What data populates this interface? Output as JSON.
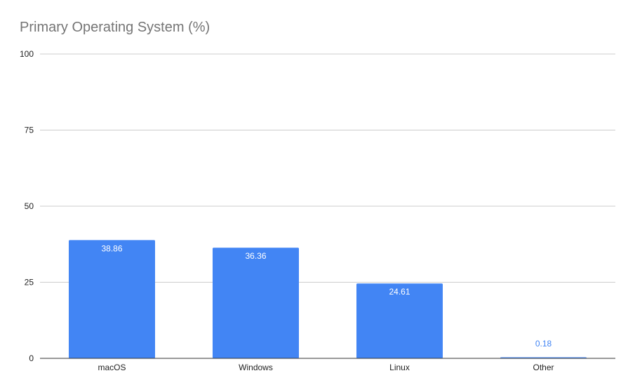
{
  "chart_data": {
    "type": "bar",
    "title": "Primary Operating System (%)",
    "categories": [
      "macOS",
      "Windows",
      "Linux",
      "Other"
    ],
    "values": [
      38.86,
      36.36,
      24.61,
      0.18
    ],
    "data_labels": [
      "38.86",
      "36.36",
      "24.61",
      "0.18"
    ],
    "ylim": [
      0,
      100
    ],
    "yticks": [
      "0",
      "25",
      "50",
      "75",
      "100"
    ],
    "grid": true,
    "legend": "none",
    "colors": {
      "bar": "#4285f4",
      "inside_label": "#ffffff",
      "outside_label": "#4285f4",
      "grid": "#cccccc",
      "axis": "#333333"
    }
  }
}
